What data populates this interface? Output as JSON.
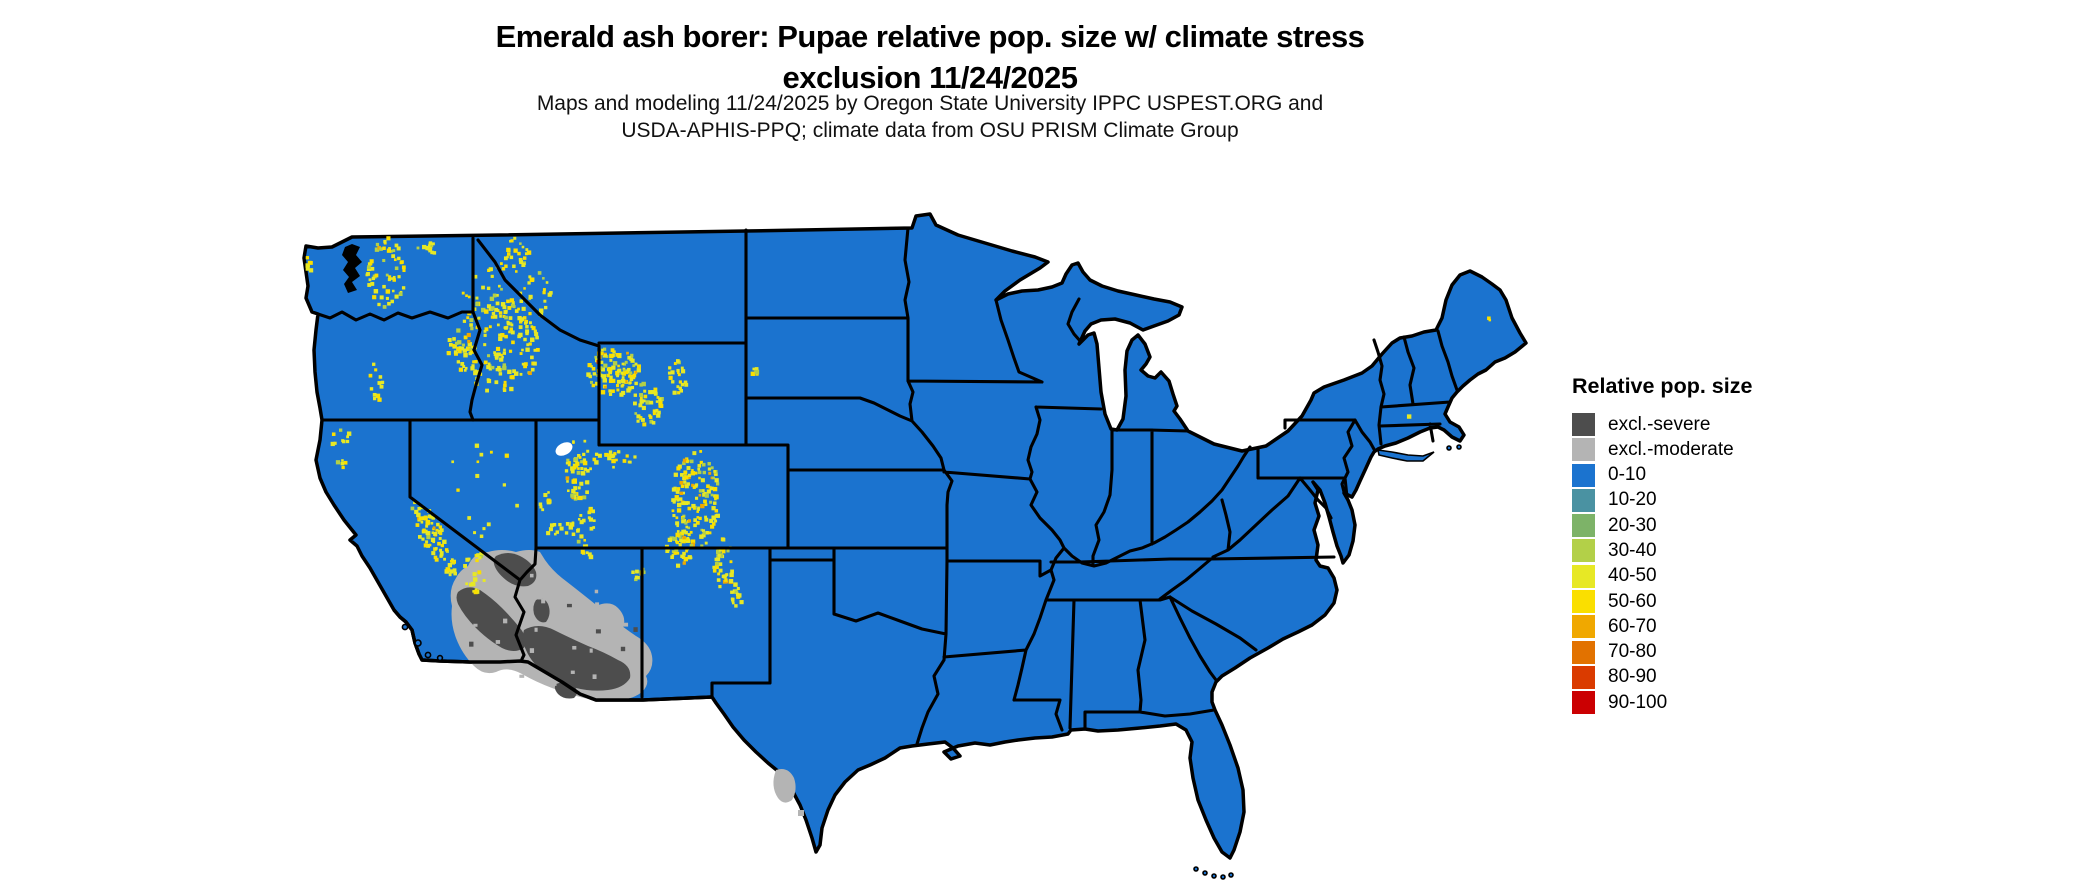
{
  "title": {
    "line1": "Emerald ash borer: Pupae relative pop. size w/ climate stress",
    "line2": "exclusion 11/24/2025"
  },
  "subtitle": {
    "line1": "Maps and modeling 11/24/2025 by Oregon State University IPPC USPEST.ORG and",
    "line2": "USDA-APHIS-PPQ; climate data from OSU PRISM Climate Group"
  },
  "legend": {
    "title": "Relative pop. size",
    "items": [
      {
        "label": "excl.-severe",
        "color": "#4d4d4d"
      },
      {
        "label": "excl.-moderate",
        "color": "#b4b4b4"
      },
      {
        "label": "0-10",
        "color": "#1b73cf"
      },
      {
        "label": "10-20",
        "color": "#4a92a2"
      },
      {
        "label": "20-30",
        "color": "#7db368"
      },
      {
        "label": "30-40",
        "color": "#b3d048"
      },
      {
        "label": "40-50",
        "color": "#e7e825"
      },
      {
        "label": "50-60",
        "color": "#fadf00"
      },
      {
        "label": "60-70",
        "color": "#f0a800"
      },
      {
        "label": "70-80",
        "color": "#e27200"
      },
      {
        "label": "80-90",
        "color": "#da3b00"
      },
      {
        "label": "90-100",
        "color": "#cb0002"
      }
    ]
  },
  "map": {
    "land_color": "#1b73cf",
    "border_color": "#000000",
    "water_color": "#ffffff",
    "excl_severe_color": "#4d4d4d",
    "excl_moderate_color": "#b4b4b4"
  }
}
